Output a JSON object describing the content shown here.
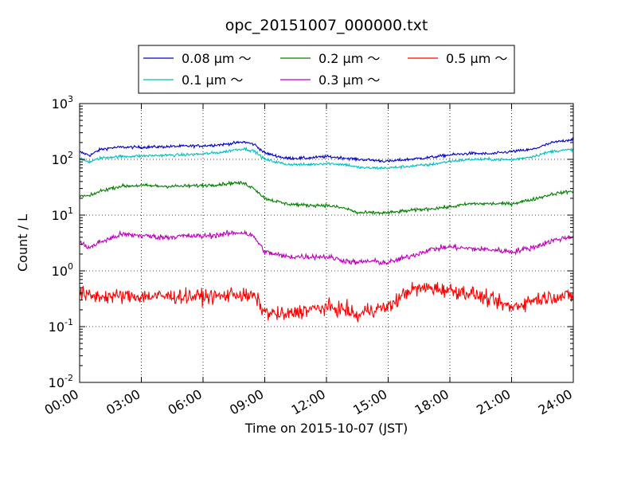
{
  "chart_data": {
    "type": "line",
    "title": "opc_20151007_000000.txt",
    "xlabel": "Time on 2015-10-07 (JST)",
    "ylabel": "Count / L",
    "y_scale": "log",
    "ylim": [
      0.01,
      1000
    ],
    "y_ticks": [
      {
        "base": "10",
        "exp": "-2",
        "value": 0.01
      },
      {
        "base": "10",
        "exp": "-1",
        "value": 0.1
      },
      {
        "base": "10",
        "exp": "0",
        "value": 1
      },
      {
        "base": "10",
        "exp": "1",
        "value": 10
      },
      {
        "base": "10",
        "exp": "2",
        "value": 100
      },
      {
        "base": "10",
        "exp": "3",
        "value": 1000
      }
    ],
    "xlim": [
      "00:00",
      "24:00"
    ],
    "x_ticks": [
      "00:00",
      "03:00",
      "06:00",
      "09:00",
      "12:00",
      "15:00",
      "18:00",
      "21:00",
      "24:00"
    ],
    "grid": true,
    "legend_position": "top-center, outside plot",
    "x_hours": [
      0,
      0.5,
      1,
      1.5,
      2,
      3,
      4,
      5,
      6,
      7,
      7.5,
      8,
      8.5,
      9,
      10,
      11,
      12,
      13,
      13.5,
      14,
      15,
      16,
      17,
      18,
      19,
      20,
      21,
      22,
      23,
      24
    ],
    "series": [
      {
        "name": "0.08 μm ～",
        "color": "#0000cc",
        "noise": 0.025,
        "values": [
          135,
          118,
          150,
          160,
          165,
          165,
          168,
          172,
          175,
          185,
          195,
          205,
          185,
          130,
          105,
          105,
          112,
          105,
          100,
          98,
          92,
          100,
          108,
          120,
          128,
          125,
          138,
          150,
          200,
          230
        ]
      },
      {
        "name": "0.1 μm ～",
        "color": "#00bfbf",
        "noise": 0.025,
        "values": [
          100,
          90,
          105,
          110,
          112,
          115,
          118,
          120,
          125,
          135,
          148,
          155,
          140,
          100,
          82,
          80,
          85,
          80,
          72,
          70,
          70,
          75,
          80,
          92,
          100,
          100,
          98,
          112,
          140,
          150
        ]
      },
      {
        "name": "0.2 μm ～",
        "color": "#008000",
        "noise": 0.03,
        "values": [
          22,
          22,
          27,
          30,
          33,
          34,
          33,
          33,
          34,
          36,
          38,
          37,
          30,
          20,
          16,
          15,
          15,
          13,
          11,
          11,
          11,
          12,
          13,
          14,
          16,
          16,
          16,
          19,
          24,
          27
        ]
      },
      {
        "name": "0.3 μm ～",
        "color": "#bf00bf",
        "noise": 0.05,
        "values": [
          3.2,
          2.6,
          3.3,
          3.8,
          4.5,
          4.3,
          4.0,
          4.2,
          4.2,
          4.5,
          4.8,
          4.9,
          4.0,
          2.2,
          1.8,
          1.8,
          1.8,
          1.5,
          1.4,
          1.5,
          1.4,
          1.8,
          2.4,
          2.7,
          2.5,
          2.4,
          2.2,
          2.6,
          3.5,
          4.2
        ]
      },
      {
        "name": "0.5 μm ～",
        "color": "#ff0000",
        "noise": 0.13,
        "values": [
          0.4,
          0.35,
          0.35,
          0.35,
          0.35,
          0.35,
          0.35,
          0.35,
          0.35,
          0.35,
          0.4,
          0.35,
          0.35,
          0.18,
          0.16,
          0.2,
          0.22,
          0.2,
          0.15,
          0.2,
          0.22,
          0.45,
          0.5,
          0.45,
          0.4,
          0.3,
          0.22,
          0.3,
          0.35,
          0.35
        ]
      }
    ]
  }
}
